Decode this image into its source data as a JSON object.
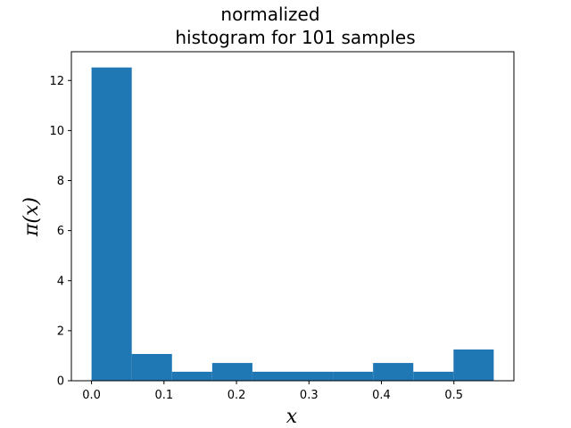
{
  "chart_data": {
    "type": "bar",
    "title_lines": [
      "normalized",
      "histogram for 101 samples"
    ],
    "xlabel": "x",
    "ylabel": "π(x)",
    "bin_edges": [
      0.0,
      0.0555,
      0.111,
      0.1665,
      0.222,
      0.2775,
      0.333,
      0.3885,
      0.444,
      0.4995,
      0.555
    ],
    "values": [
      12.52,
      1.07,
      0.36,
      0.71,
      0.36,
      0.36,
      0.36,
      0.71,
      0.36,
      1.25
    ],
    "xlim": [
      -0.0278,
      0.5828
    ],
    "ylim": [
      0,
      13.15
    ],
    "xticks": [
      0.0,
      0.1,
      0.2,
      0.3,
      0.4,
      0.5
    ],
    "xtick_labels": [
      "0.0",
      "0.1",
      "0.2",
      "0.3",
      "0.4",
      "0.5"
    ],
    "yticks": [
      0,
      2,
      4,
      6,
      8,
      10,
      12
    ],
    "ytick_labels": [
      "0",
      "2",
      "4",
      "6",
      "8",
      "10",
      "12"
    ],
    "grid": false,
    "bar_color": "#1f77b4"
  }
}
